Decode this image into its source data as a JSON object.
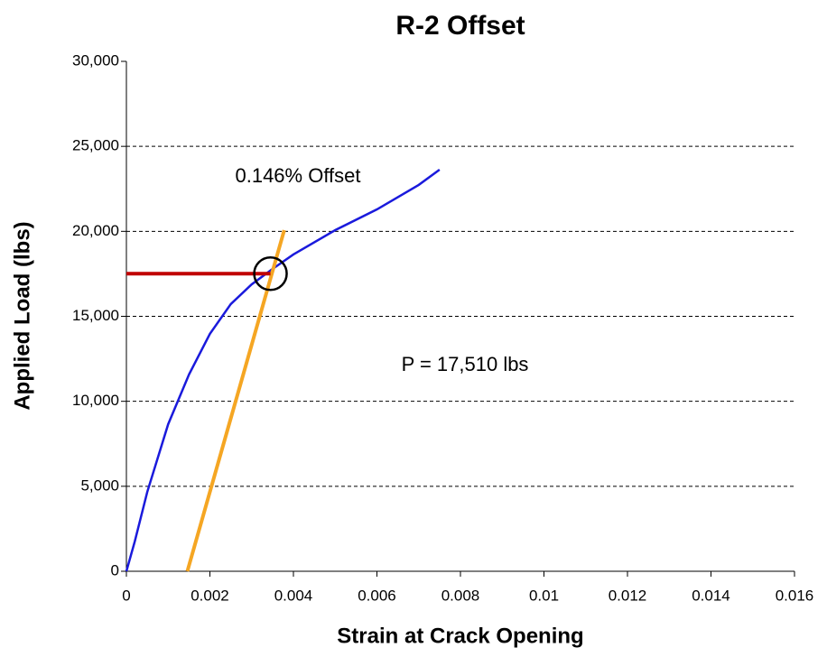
{
  "chart_data": {
    "type": "line",
    "title": "R-2 Offset",
    "x_label": "Strain at Crack Opening",
    "y_label": "Applied Load (lbs)",
    "annotations": [
      "0.146% Offset",
      "P = 17,510 lbs"
    ],
    "xlim": [
      0,
      0.016
    ],
    "xticks": [
      0,
      0.002,
      0.004,
      0.006,
      0.008,
      0.01,
      0.012,
      0.014,
      0.016
    ],
    "ylim": [
      0,
      30000
    ],
    "yticks": [
      0,
      {
        "value": 5000,
        "label": "5,000"
      },
      {
        "value": 10000,
        "label": "10,000"
      },
      {
        "value": 15000,
        "label": "15,000"
      },
      {
        "value": 20000,
        "label": "20,000"
      },
      {
        "value": 25000,
        "label": "25,000"
      },
      {
        "value": 30000,
        "label": "30,000"
      }
    ],
    "grid": true,
    "series": [
      {
        "color": "#1a1adc",
        "x": [
          0,
          0.0002,
          0.0005,
          0.001,
          0.0015,
          0.002,
          0.0025,
          0.003,
          0.0035,
          0.004,
          0.005,
          0.006,
          0.007,
          0.0075
        ],
        "values": [
          0,
          1750,
          4670,
          8650,
          11580,
          13970,
          15720,
          16880,
          17790,
          18640,
          20070,
          21290,
          22730,
          23630
        ]
      },
      {
        "color": "#f5a623",
        "x": [
          0.00146,
          0.00378
        ],
        "values": [
          0,
          20070
        ]
      },
      {
        "color": "#c00000",
        "x": [
          0,
          0.00345
        ],
        "values": [
          17510,
          17510
        ]
      }
    ]
  }
}
